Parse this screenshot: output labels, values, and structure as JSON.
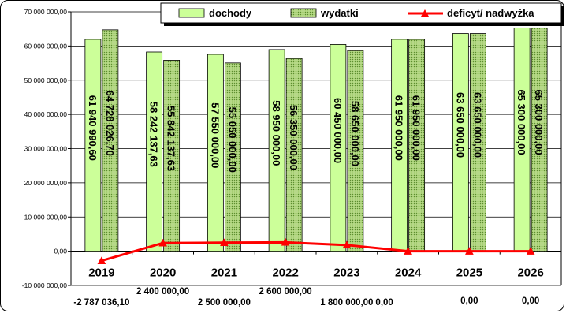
{
  "chart_data": {
    "type": "bar",
    "categories": [
      "2019",
      "2020",
      "2021",
      "2022",
      "2023",
      "2024",
      "2025",
      "2026"
    ],
    "series": [
      {
        "name": "dochody",
        "type": "bar",
        "color": "#ccff99",
        "values": [
          61940990.6,
          58242137.63,
          57550000.0,
          58950000.0,
          60450000.0,
          61950000.0,
          63650000.0,
          65300000.0
        ],
        "labels": [
          "61 940 990,60",
          "58 242 137,63",
          "57 550 000,00",
          "58 950 000,00",
          "60 450 000,00",
          "61 950 000,00",
          "63 650 000,00",
          "65 300 000,00"
        ]
      },
      {
        "name": "wydatki",
        "type": "bar",
        "color": "#99cc66",
        "pattern": "dots",
        "values": [
          64728026.7,
          55842137.63,
          55050000.0,
          56350000.0,
          58650000.0,
          61950000.0,
          63650000.0,
          65300000.0
        ],
        "labels": [
          "64 728 026,70",
          "55 842 137,63",
          "55 050 000,00",
          "56 350 000,00",
          "58 650 000,00",
          "61 950 000,00",
          "63 650 000,00",
          "65 300 000,00"
        ]
      },
      {
        "name": "deficyt/ nadwyżka",
        "type": "line",
        "color": "#ff0000",
        "values": [
          -2787036.1,
          2400000.0,
          2500000.0,
          2600000.0,
          1800000.0,
          0.0,
          0.0,
          0.0
        ],
        "labels": [
          "-2 787 036,10",
          "2 400 000,00",
          "2 500 000,00",
          "2 600 000,00",
          "1 800 000,00",
          "0,00",
          "0,00",
          "0,00"
        ]
      }
    ],
    "ylim": [
      -10000000,
      70000000
    ],
    "yticks": [
      -10000000,
      0,
      10000000,
      20000000,
      30000000,
      40000000,
      50000000,
      60000000,
      70000000
    ],
    "ytick_labels": [
      "-10 000 000,00",
      "0,00",
      "10 000 000,00",
      "20 000 000,00",
      "30 000 000,00",
      "40 000 000,00",
      "50 000 000,00",
      "60 000 000,00",
      "70 000 000,00"
    ],
    "grid": true,
    "legend": "top-right",
    "title": "",
    "xlabel": "",
    "ylabel": ""
  }
}
